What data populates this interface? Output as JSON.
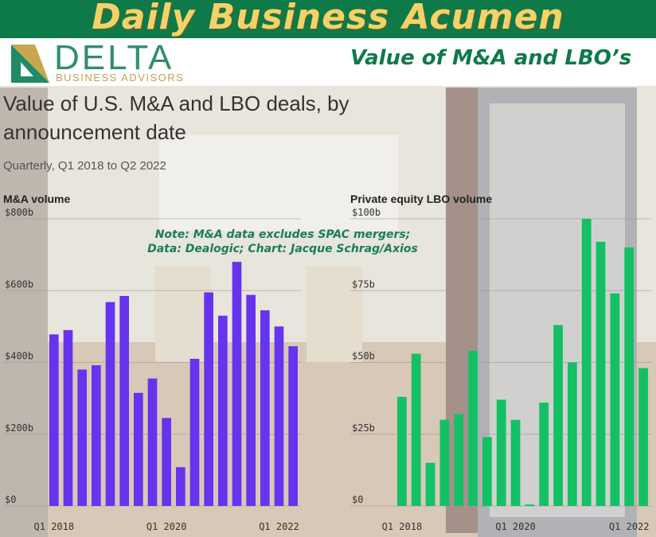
{
  "banner": {
    "title": "Daily Business Acumen"
  },
  "logo": {
    "word": "DELTA",
    "subtitle": "BUSINESS ADVISORS"
  },
  "header": {
    "subtitle": "Value of M&A and LBO’s"
  },
  "figure": {
    "title": "Value of U.S. M&A and LBO deals, by announcement date",
    "subtitle": "Quarterly, Q1 2018 to Q2 2022",
    "note_line1": "Note: M&A data excludes SPAC mergers;",
    "note_line2": "Data: Dealogic; Chart: Jacque Schrag/Axios"
  },
  "colors": {
    "ma_bar": "#6633ee",
    "lbo_bar": "#14c064",
    "banner": "#0e7a4a",
    "banner_text": "#f2d36b"
  },
  "chart_data": [
    {
      "type": "bar",
      "title": "M&A volume",
      "categories": [
        "Q1 2018",
        "Q2 2018",
        "Q3 2018",
        "Q4 2018",
        "Q1 2019",
        "Q2 2019",
        "Q3 2019",
        "Q4 2019",
        "Q1 2020",
        "Q2 2020",
        "Q3 2020",
        "Q4 2020",
        "Q1 2021",
        "Q2 2021",
        "Q3 2021",
        "Q4 2021",
        "Q1 2022",
        "Q2 2022"
      ],
      "values": [
        478,
        490,
        380,
        392,
        568,
        585,
        315,
        355,
        245,
        108,
        410,
        595,
        530,
        680,
        588,
        545,
        500,
        445
      ],
      "ylim": [
        0,
        800
      ],
      "yticks": [
        0,
        200,
        400,
        600,
        800
      ],
      "ytick_labels": [
        "$0",
        "$200b",
        "$400b",
        "$600b",
        "$800b"
      ],
      "xtick_labels": [
        "Q1 2018",
        "Q1 2020",
        "Q1 2022"
      ],
      "xtick_index": [
        0,
        8,
        16
      ],
      "grid": true
    },
    {
      "type": "bar",
      "title": "Private equity LBO volume",
      "categories": [
        "Q1 2018",
        "Q2 2018",
        "Q3 2018",
        "Q4 2018",
        "Q1 2019",
        "Q2 2019",
        "Q3 2019",
        "Q4 2019",
        "Q1 2020",
        "Q2 2020",
        "Q3 2020",
        "Q4 2020",
        "Q1 2021",
        "Q2 2021",
        "Q3 2021",
        "Q4 2021",
        "Q1 2022",
        "Q2 2022"
      ],
      "values": [
        38,
        53,
        15,
        30,
        32,
        54,
        24,
        37,
        30,
        0.5,
        36,
        63,
        50,
        100,
        92,
        74,
        90,
        48
      ],
      "ylim": [
        0,
        100
      ],
      "yticks": [
        0,
        25,
        50,
        75,
        100
      ],
      "ytick_labels": [
        "$0",
        "$25b",
        "$50b",
        "$75b",
        "$100b"
      ],
      "xtick_labels": [
        "Q1 2018",
        "Q1 2020",
        "Q1 2022"
      ],
      "xtick_index": [
        0,
        8,
        16
      ],
      "grid": true
    }
  ]
}
